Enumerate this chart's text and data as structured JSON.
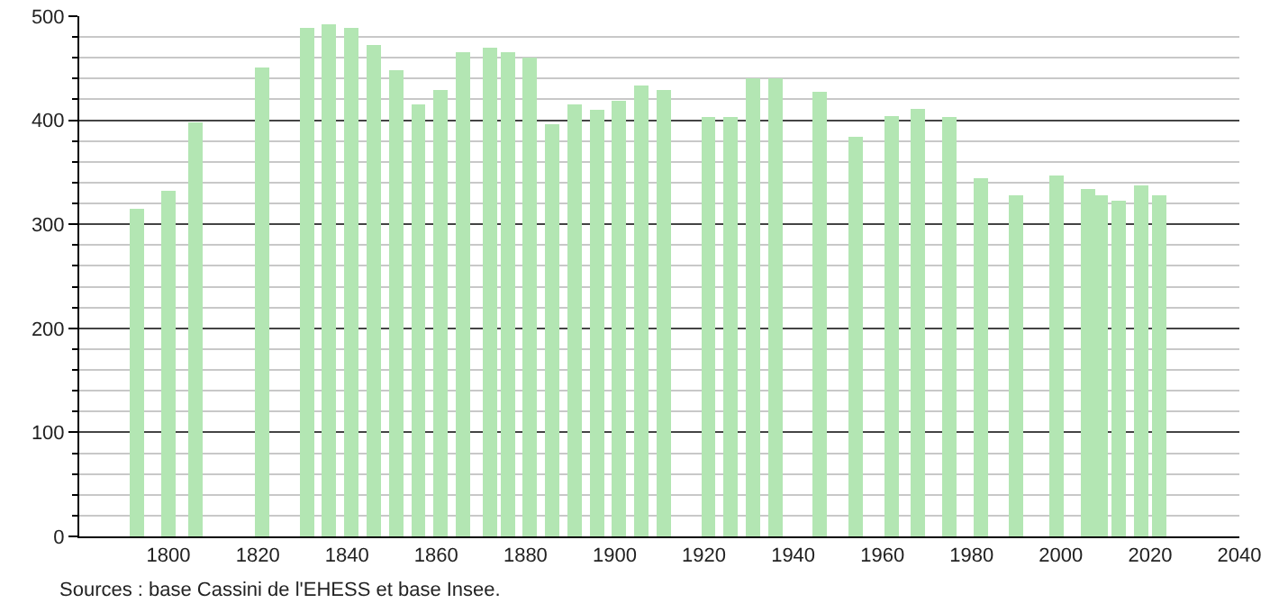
{
  "chart_data": {
    "type": "bar",
    "x": [
      1793,
      1800,
      1806,
      1821,
      1831,
      1836,
      1841,
      1846,
      1851,
      1856,
      1861,
      1866,
      1872,
      1876,
      1881,
      1886,
      1891,
      1896,
      1901,
      1906,
      1911,
      1921,
      1926,
      1931,
      1936,
      1946,
      1954,
      1962,
      1968,
      1975,
      1982,
      1990,
      1999,
      2006,
      2009,
      2013,
      2018,
      2022
    ],
    "values": [
      315,
      332,
      398,
      451,
      489,
      492,
      489,
      472,
      448,
      415,
      429,
      465,
      470,
      465,
      460,
      396,
      415,
      410,
      419,
      433,
      429,
      403,
      403,
      440,
      440,
      427,
      384,
      404,
      411,
      403,
      344,
      328,
      347,
      334,
      328,
      323,
      337,
      328
    ],
    "color": "#b3e6b3",
    "xlim": [
      1780,
      2040
    ],
    "xticks": [
      1800,
      1820,
      1840,
      1860,
      1880,
      1900,
      1920,
      1940,
      1960,
      1980,
      2000,
      2020,
      2040
    ],
    "ylim": [
      0,
      500
    ],
    "yticks": [
      0,
      {
        "value": 20,
        "label": null
      },
      {
        "value": 40,
        "label": null
      },
      {
        "value": 60,
        "label": null
      },
      {
        "value": 80,
        "label": null
      },
      100,
      {
        "value": 120,
        "label": null
      },
      {
        "value": 140,
        "label": null
      },
      {
        "value": 160,
        "label": null
      },
      {
        "value": 180,
        "label": null
      },
      200,
      {
        "value": 220,
        "label": null
      },
      {
        "value": 240,
        "label": null
      },
      {
        "value": 260,
        "label": null
      },
      {
        "value": 280,
        "label": null
      },
      300,
      {
        "value": 320,
        "label": null
      },
      {
        "value": 340,
        "label": null
      },
      {
        "value": 360,
        "label": null
      },
      {
        "value": 380,
        "label": null
      },
      400,
      {
        "value": 420,
        "label": null
      },
      {
        "value": 440,
        "label": null
      },
      {
        "value": 460,
        "label": null
      },
      {
        "value": 480,
        "label": null
      },
      500
    ],
    "grid": "y",
    "annotations": [
      "Sources : base Cassini de l'EHESS et base Insee."
    ]
  }
}
